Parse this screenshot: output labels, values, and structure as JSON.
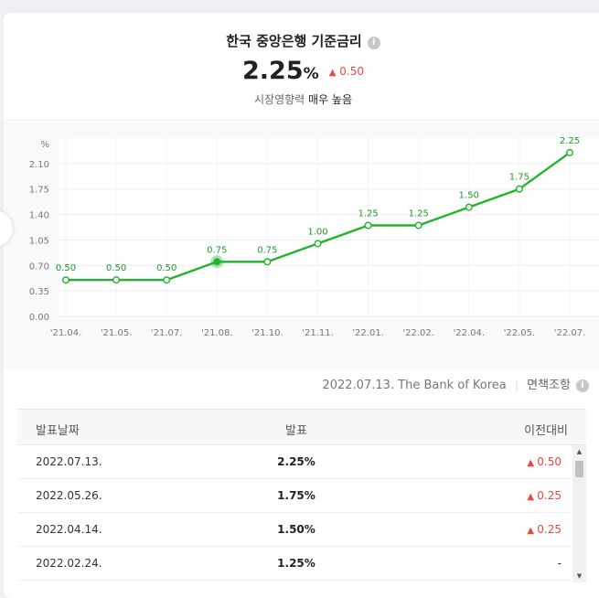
{
  "header": {
    "title": "한국 중앙은행 기준금리",
    "info_glyph": "i",
    "value": "2.25",
    "unit": "%",
    "change": "0.50",
    "impact_label": "시장영향력",
    "impact_value": "매우 높음"
  },
  "source": {
    "date_source": "2022.07.13. The Bank of Korea",
    "kind": "면책조항"
  },
  "table": {
    "headers": [
      "발표날짜",
      "발표",
      "이전대비"
    ],
    "rows": [
      {
        "date": "2022.07.13.",
        "value": "2.25%",
        "change": "0.50",
        "dir": "up"
      },
      {
        "date": "2022.05.26.",
        "value": "1.75%",
        "change": "0.25",
        "dir": "up"
      },
      {
        "date": "2022.04.14.",
        "value": "1.50%",
        "change": "0.25",
        "dir": "up"
      },
      {
        "date": "2022.02.24.",
        "value": "1.25%",
        "change": "-",
        "dir": "flat"
      }
    ]
  },
  "colors": {
    "line": "#21b42d",
    "up": "#e8483f"
  },
  "chart_data": {
    "type": "line",
    "ylabel": "%",
    "ylim": [
      0,
      2.45
    ],
    "yticks": [
      "0.00",
      "0.35",
      "0.70",
      "1.05",
      "1.40",
      "1.75",
      "2.10"
    ],
    "ytick_values": [
      0,
      0.35,
      0.7,
      1.05,
      1.4,
      1.75,
      2.1
    ],
    "categories": [
      "'21.04.",
      "'21.05.",
      "'21.07.",
      "'21.08.",
      "'21.10.",
      "'21.11.",
      "'22.01.",
      "'22.02.",
      "'22.04.",
      "'22.05.",
      "'22.07."
    ],
    "values": [
      0.5,
      0.5,
      0.5,
      0.75,
      0.75,
      1.0,
      1.25,
      1.25,
      1.5,
      1.75,
      2.25
    ],
    "value_labels": [
      "0.50",
      "0.50",
      "0.50",
      "0.75",
      "0.75",
      "1.00",
      "1.25",
      "1.25",
      "1.50",
      "1.75",
      "2.25"
    ],
    "highlight_index": 3,
    "grid": true
  }
}
